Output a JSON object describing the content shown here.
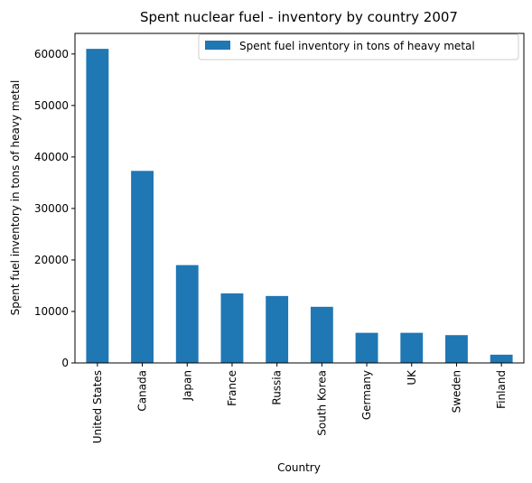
{
  "chart_data": {
    "type": "bar",
    "title": "Spent nuclear fuel - inventory by country 2007",
    "xlabel": "Country",
    "ylabel": "Spent fuel inventory in tons of heavy metal",
    "categories": [
      "United States",
      "Canada",
      "Japan",
      "France",
      "Russia",
      "South Korea",
      "Germany",
      "UK",
      "Sweden",
      "Finland"
    ],
    "series": [
      {
        "name": "Spent fuel inventory in tons of heavy metal",
        "values": [
          61000,
          37300,
          19000,
          13500,
          13000,
          10900,
          5850,
          5850,
          5400,
          1600
        ],
        "color": "#1f77b4"
      }
    ],
    "ylim": [
      0,
      64000
    ],
    "yticks": [
      0,
      10000,
      20000,
      30000,
      40000,
      50000,
      60000
    ],
    "grid": false,
    "legend": "top-right"
  }
}
